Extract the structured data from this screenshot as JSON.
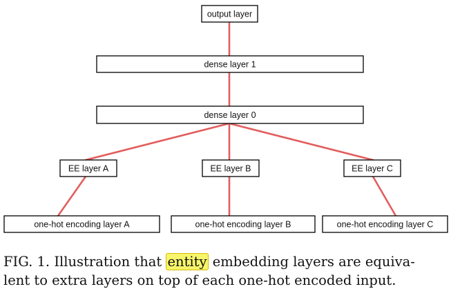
{
  "diagram": {
    "nodes": {
      "output_layer": "output layer",
      "dense_layer_1": "dense layer 1",
      "dense_layer_0": "dense layer 0",
      "ee_layer_a": "EE layer A",
      "ee_layer_b": "EE layer B",
      "ee_layer_c": "EE layer C",
      "onehot_a": "one-hot encoding layer A",
      "onehot_b": "one-hot encoding layer B",
      "onehot_c": "one-hot encoding layer C"
    },
    "edge_color": "#e35d5d"
  },
  "caption": {
    "prefix": "FIG. 1. Illustration that ",
    "highlighted_word": "entity",
    "line1_suffix": " embedding layers are equiva-",
    "line2": "lent to extra layers on top of each one-hot encoded input.",
    "highlight_color": "#f7f56a"
  }
}
